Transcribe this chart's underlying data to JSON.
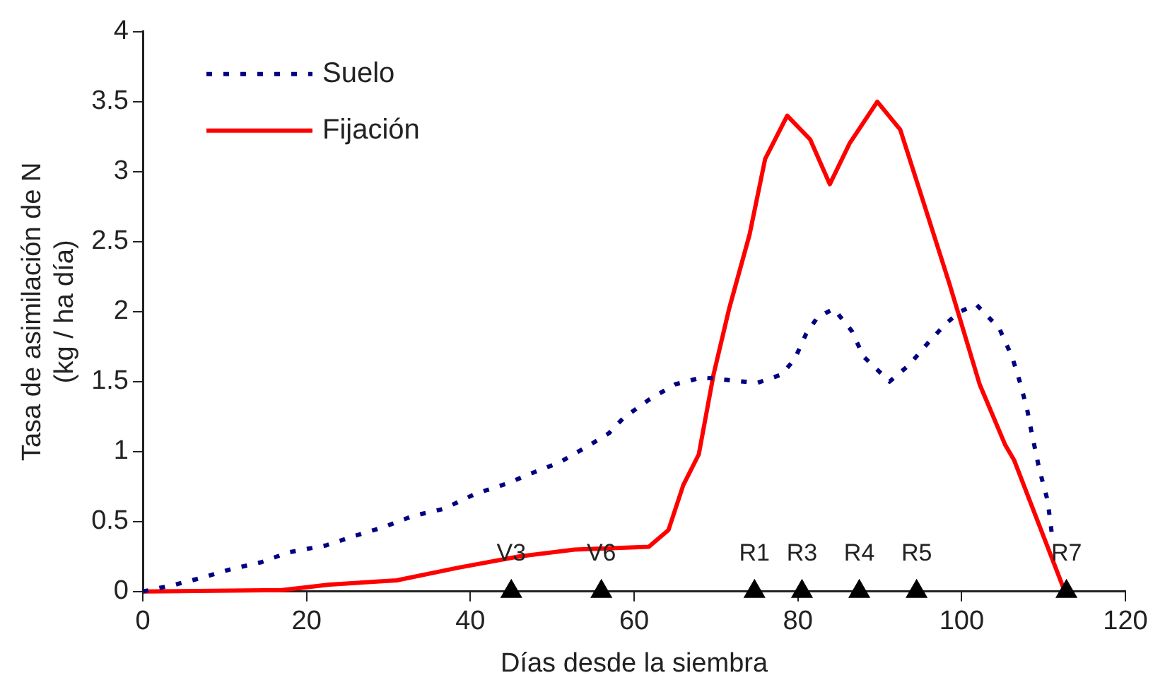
{
  "chart_data": {
    "type": "line",
    "xlabel": "Días desde la siembra",
    "ylabel": "Tasa de asimilación de N (kg / ha día)",
    "xlim": [
      0,
      120
    ],
    "xticks": [
      0,
      20,
      40,
      60,
      80,
      100,
      120
    ],
    "ylim": [
      0,
      4
    ],
    "yticks": [
      0,
      0.5,
      1,
      1.5,
      2,
      2.5,
      3,
      3.5,
      4
    ],
    "grid": false,
    "legend": "top left",
    "marker": "none",
    "series": [
      {
        "name": "Suelo",
        "color": "#000080",
        "line_style": "dotted",
        "x": [
          0,
          4,
          7.3,
          10.8,
          14.5,
          17.8,
          22.4,
          26,
          29.4,
          33,
          36.7,
          40.7,
          44.4,
          47.7,
          50.8,
          54.1,
          56.9,
          58.7,
          61.8,
          65,
          68.3,
          71.6,
          75,
          78,
          79.6,
          81,
          82.4,
          84.4,
          86.6,
          88,
          91.2,
          93.6,
          95.8,
          98,
          99.8,
          101.8,
          104.6,
          106.2,
          107.2,
          108,
          108.6,
          109.5,
          110.5,
          111
        ],
        "values": [
          0,
          0.05,
          0.1,
          0.16,
          0.21,
          0.28,
          0.33,
          0.4,
          0.46,
          0.54,
          0.59,
          0.7,
          0.77,
          0.85,
          0.92,
          1.03,
          1.13,
          1.24,
          1.37,
          1.48,
          1.53,
          1.51,
          1.49,
          1.55,
          1.66,
          1.84,
          1.96,
          2.02,
          1.86,
          1.68,
          1.5,
          1.62,
          1.77,
          1.91,
          2,
          2.05,
          1.88,
          1.67,
          1.48,
          1.3,
          1.12,
          0.87,
          0.65,
          0.42
        ]
      },
      {
        "type": "scatter",
        "color": "#000000",
        "marker": "triangle",
        "x": [
          45,
          56,
          74.7,
          80.5,
          87.5,
          94.5,
          112.8
        ],
        "values": [
          0,
          0,
          0,
          0,
          0,
          0,
          0
        ]
      },
      {
        "name": "Fijación",
        "color": "#ff0000",
        "line_style": "solid",
        "x": [
          0,
          17,
          22.8,
          31,
          38.5,
          45.9,
          52.7,
          61.8,
          64.2,
          66,
          67.9,
          69.7,
          71.6,
          74.1,
          76,
          78.7,
          81.5,
          83.9,
          86.3,
          89.7,
          92.5,
          95.4,
          98.5,
          102.2,
          105.3,
          106.4,
          112.6
        ],
        "values": [
          0,
          0.01,
          0.05,
          0.08,
          0.17,
          0.25,
          0.3,
          0.32,
          0.44,
          0.76,
          0.98,
          1.55,
          2.02,
          2.55,
          3.09,
          3.4,
          3.23,
          2.91,
          3.2,
          3.5,
          3.3,
          2.77,
          2.2,
          1.48,
          1.05,
          0.94,
          0
        ]
      }
    ],
    "annotations": [
      {
        "text": "V3",
        "x": 45,
        "y": 0
      },
      {
        "text": "V6",
        "x": 56,
        "y": 0
      },
      {
        "text": "R1",
        "x": 74.7,
        "y": 0
      },
      {
        "text": "R3",
        "x": 80.5,
        "y": 0
      },
      {
        "text": "R4",
        "x": 87.5,
        "y": 0
      },
      {
        "text": "R5",
        "x": 94.5,
        "y": 0
      },
      {
        "text": "R7",
        "x": 112.8,
        "y": 0
      }
    ]
  }
}
